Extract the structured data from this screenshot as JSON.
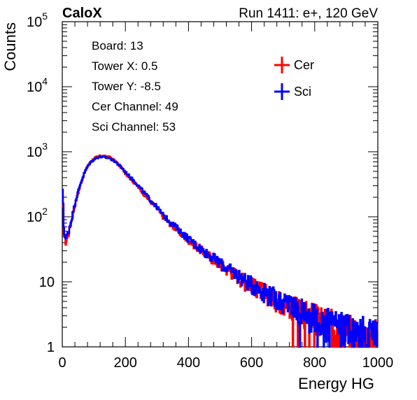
{
  "chart_data": {
    "type": "line",
    "title_left": "CaloX",
    "title_right": "Run 1411: e+, 120 GeV",
    "xlabel": "Energy HG",
    "ylabel": "Counts",
    "xlim": [
      0,
      1000
    ],
    "ylim": [
      1,
      100000
    ],
    "yscale": "log",
    "grid": false,
    "x_ticks": [
      0,
      200,
      400,
      600,
      800,
      1000
    ],
    "y_ticks": [
      {
        "value": 1,
        "label": "1"
      },
      {
        "value": 10,
        "label": "10"
      },
      {
        "value": 100,
        "label": "10",
        "exp": "2"
      },
      {
        "value": 1000,
        "label": "10",
        "exp": "3"
      },
      {
        "value": 10000,
        "label": "10",
        "exp": "4"
      },
      {
        "value": 100000,
        "label": "10",
        "exp": "5"
      }
    ],
    "info_lines": [
      "Board: 13",
      "Tower X: 0.5",
      "Tower Y: -8.5",
      "Cer Channel: 49",
      "Sci Channel: 53"
    ],
    "legend": {
      "placement": "top-right",
      "entries": [
        "Cer",
        "Sci"
      ]
    },
    "series": [
      {
        "name": "Cer",
        "color": "#ff0000",
        "x": [
          2,
          5,
          10,
          20,
          30,
          40,
          50,
          60,
          70,
          80,
          90,
          100,
          110,
          120,
          130,
          140,
          150,
          160,
          170,
          180,
          190,
          200,
          220,
          240,
          260,
          280,
          300,
          320,
          340,
          360,
          380,
          400,
          420,
          440,
          460,
          480,
          500,
          520,
          540,
          560,
          580,
          600,
          620,
          640,
          660,
          680,
          700,
          720,
          740,
          760,
          780,
          800,
          820,
          840,
          860,
          880,
          900,
          920,
          940,
          960,
          980,
          1000
        ],
        "y": [
          200,
          60,
          40,
          55,
          90,
          150,
          230,
          340,
          470,
          600,
          700,
          780,
          830,
          860,
          860,
          840,
          830,
          760,
          700,
          620,
          550,
          470,
          370,
          290,
          220,
          170,
          135,
          100,
          80,
          66,
          53,
          44,
          37,
          31,
          26,
          22,
          19,
          16,
          14,
          12,
          10,
          9,
          8,
          7,
          6.2,
          5.5,
          5,
          4.5,
          4,
          3.6,
          3.3,
          3,
          2.7,
          2.5,
          2.3,
          2.1,
          2,
          1.9,
          1.8,
          1.7,
          1.6,
          1.5
        ]
      },
      {
        "name": "Sci",
        "color": "#0000ff",
        "x": [
          2,
          5,
          10,
          20,
          30,
          40,
          50,
          60,
          70,
          80,
          90,
          100,
          110,
          120,
          130,
          140,
          150,
          160,
          170,
          180,
          190,
          200,
          220,
          240,
          260,
          280,
          300,
          320,
          340,
          360,
          380,
          400,
          420,
          440,
          460,
          480,
          500,
          520,
          540,
          560,
          580,
          600,
          620,
          640,
          660,
          680,
          700,
          720,
          740,
          760,
          780,
          800,
          820,
          840,
          860,
          880,
          900,
          920,
          940,
          960,
          980,
          1000
        ],
        "y": [
          250,
          70,
          45,
          60,
          95,
          160,
          240,
          350,
          470,
          590,
          690,
          760,
          810,
          830,
          830,
          810,
          800,
          740,
          690,
          620,
          560,
          490,
          390,
          305,
          235,
          180,
          142,
          106,
          85,
          70,
          56,
          46,
          38,
          32,
          27,
          23,
          19.5,
          16.5,
          14.5,
          12.5,
          10.5,
          9.3,
          8.2,
          7.2,
          6.4,
          5.7,
          5.1,
          4.6,
          4.1,
          3.7,
          3.3,
          3,
          2.7,
          2.5,
          2.3,
          2.1,
          2,
          1.9,
          1.8,
          1.7,
          1.6,
          1.5
        ]
      }
    ]
  }
}
